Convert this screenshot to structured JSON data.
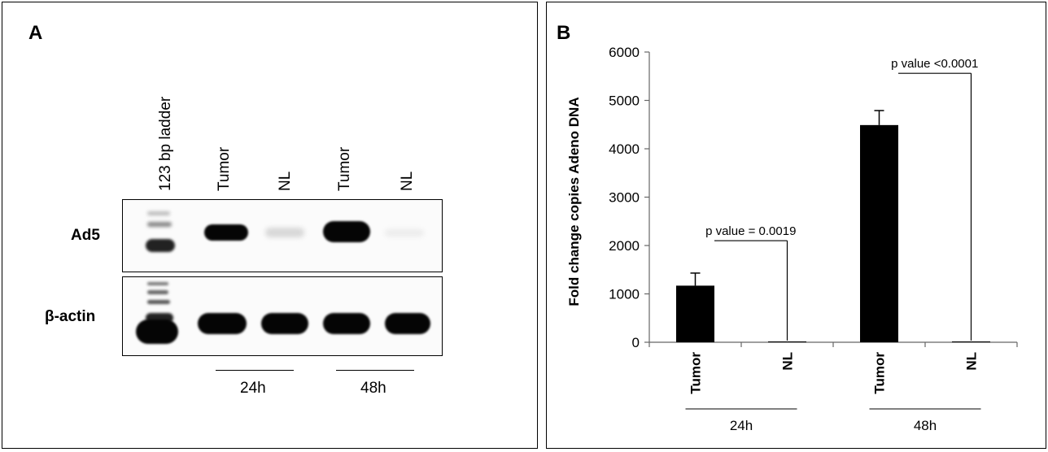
{
  "panel_a": {
    "letter": "A",
    "lanes": [
      "123 bp ladder",
      "Tumor",
      "NL",
      "Tumor",
      "NL"
    ],
    "rows": [
      "Ad5",
      "β-actin"
    ],
    "groups": [
      "24h",
      "48h"
    ]
  },
  "panel_b": {
    "letter": "B"
  },
  "chart_data": {
    "type": "bar",
    "categories": [
      "Tumor",
      "NL",
      "Tumor",
      "NL"
    ],
    "groups": [
      "24h",
      "48h"
    ],
    "values": [
      1170,
      0,
      4490,
      0
    ],
    "errors": [
      260,
      0,
      300,
      0
    ],
    "ylabel": "Fold change copies Adeno DNA",
    "ylim": [
      0,
      6000
    ],
    "yticks": [
      0,
      1000,
      2000,
      3000,
      4000,
      5000,
      6000
    ],
    "annotations": [
      "p value = 0.0019",
      "p value <0.0001"
    ],
    "grid": false,
    "bar_color": "#000000"
  }
}
